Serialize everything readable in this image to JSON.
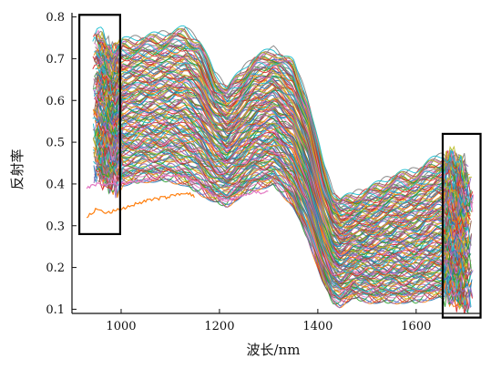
{
  "chart_data": {
    "type": "line",
    "title": "",
    "xlabel": "波长/nm",
    "ylabel": "反射率",
    "xlim": [
      900,
      1730
    ],
    "ylim": [
      0.09,
      0.81
    ],
    "xticks": [
      1000,
      1200,
      1400,
      1600
    ],
    "yticks": [
      0.1,
      0.2,
      0.3,
      0.4,
      0.5,
      0.6,
      0.7,
      0.8
    ],
    "grid": false,
    "legend": "none",
    "series_count_approx": 160,
    "representative_curves": {
      "x": [
        950,
        970,
        980,
        1000,
        1050,
        1100,
        1130,
        1160,
        1190,
        1215,
        1240,
        1270,
        1310,
        1350,
        1380,
        1410,
        1430,
        1445,
        1470,
        1510,
        1560,
        1600,
        1640,
        1670,
        1690,
        1710
      ],
      "upper_envelope_y": [
        0.76,
        0.75,
        0.72,
        0.74,
        0.75,
        0.76,
        0.77,
        0.74,
        0.66,
        0.63,
        0.66,
        0.7,
        0.72,
        0.69,
        0.6,
        0.45,
        0.38,
        0.36,
        0.37,
        0.39,
        0.42,
        0.43,
        0.46,
        0.47,
        0.45,
        0.43
      ],
      "lower_envelope_y": [
        0.42,
        0.4,
        0.39,
        0.4,
        0.41,
        0.41,
        0.4,
        0.38,
        0.36,
        0.35,
        0.37,
        0.39,
        0.4,
        0.35,
        0.27,
        0.17,
        0.12,
        0.11,
        0.13,
        0.12,
        0.12,
        0.12,
        0.13,
        0.13,
        0.11,
        0.1
      ],
      "outlier_orange_y": [
        0.32,
        0.34,
        0.33,
        0.34,
        0.36,
        0.37,
        0.38,
        0.37
      ],
      "outlier_orange_x": [
        930,
        950,
        970,
        1000,
        1050,
        1100,
        1130,
        1150
      ],
      "outlier_pink_y": [
        0.39,
        0.4,
        0.4,
        0.4,
        0.41,
        0.42,
        0.42,
        0.4,
        0.37,
        0.36,
        0.37,
        0.38,
        0.38
      ],
      "outlier_pink_x": [
        930,
        950,
        970,
        1000,
        1050,
        1100,
        1130,
        1160,
        1190,
        1215,
        1240,
        1270,
        1300
      ]
    },
    "highlight_boxes": [
      {
        "name": "left-band",
        "x_range": [
          915,
          998
        ],
        "y_range": [
          0.28,
          0.805
        ]
      },
      {
        "name": "right-band",
        "x_range": [
          1654,
          1731
        ],
        "y_range": [
          0.08,
          0.52
        ]
      }
    ],
    "colors": {
      "series_palette": [
        "#1f77b4",
        "#ff7f0e",
        "#2ca02c",
        "#d62728",
        "#9467bd",
        "#8c564b",
        "#e377c2",
        "#7f7f7f",
        "#bcbd22",
        "#17becf"
      ],
      "axis": "#111111",
      "box": "#000000"
    }
  }
}
